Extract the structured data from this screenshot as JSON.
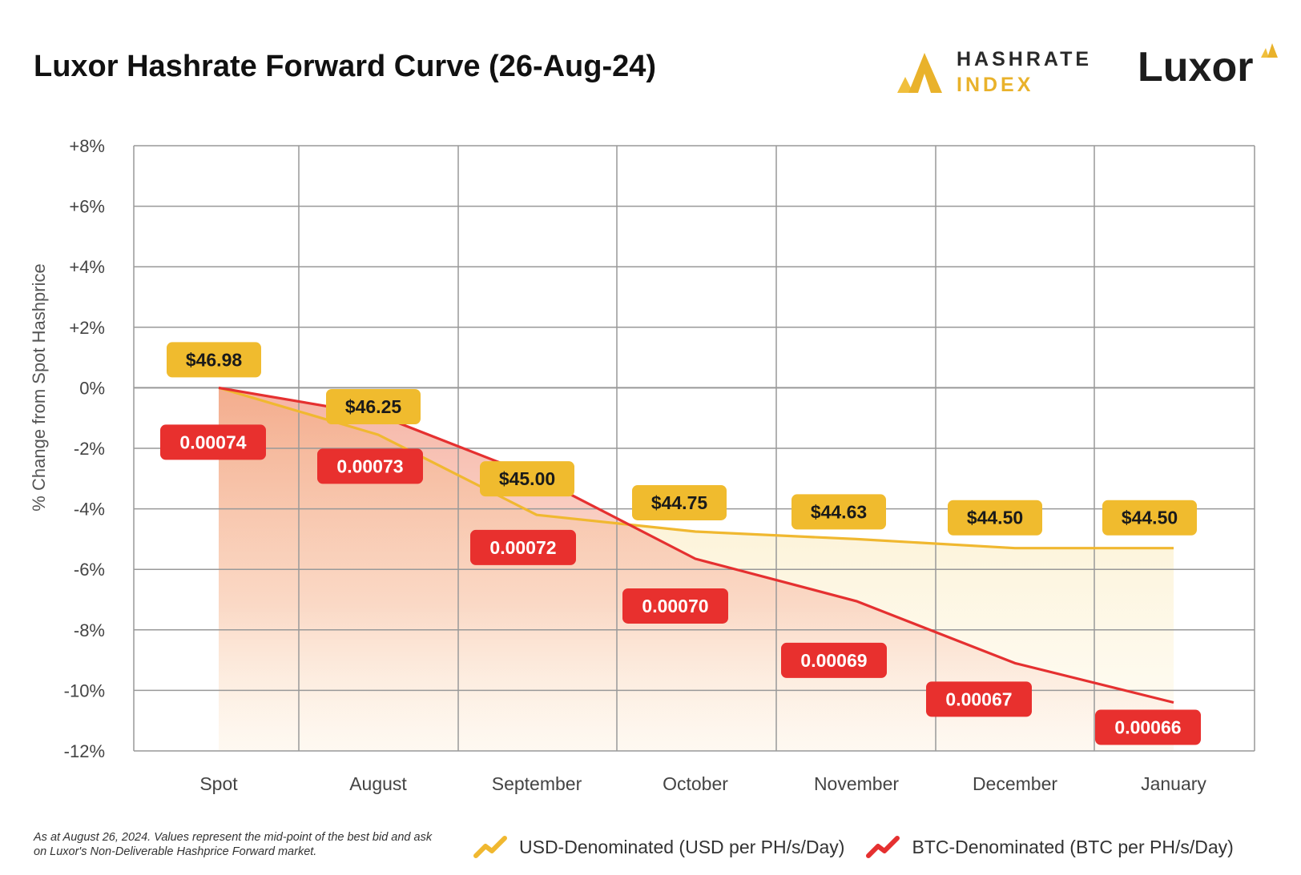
{
  "header": {
    "title": "Luxor Hashrate Forward Curve (26-Aug-24)",
    "hashrate_index_logo": {
      "line1": "HASHRATE",
      "line2": "INDEX"
    },
    "luxor_logo": "Luxor"
  },
  "colors": {
    "usd": "#f0bb2e",
    "usd_line": "#f0b830",
    "btc": "#e8302e",
    "btc_line": "#e53030",
    "grid": "#999999",
    "axis_text": "#444444"
  },
  "chart_data": {
    "type": "line",
    "categories": [
      "Spot",
      "August",
      "September",
      "October",
      "November",
      "December",
      "January"
    ],
    "ylabel": "% Change from Spot Hashprice",
    "ylim": [
      -12,
      8
    ],
    "yticks": [
      8,
      6,
      4,
      2,
      0,
      -2,
      -4,
      -6,
      -8,
      -10,
      -12
    ],
    "ytick_labels": [
      "+8%",
      "+6%",
      "+4%",
      "+2%",
      "0%",
      "-2%",
      "-4%",
      "-6%",
      "-8%",
      "-10%",
      "-12%"
    ],
    "grid": true,
    "legend_position": "bottom",
    "series": [
      {
        "name": "USD-Denominated (USD per PH/s/Day)",
        "values": [
          0,
          -1.55,
          -4.2,
          -4.75,
          -5.0,
          -5.3,
          -5.3
        ],
        "labels": [
          "$46.98",
          "$46.25",
          "$45.00",
          "$44.75",
          "$44.63",
          "$44.50",
          "$44.50"
        ]
      },
      {
        "name": "BTC-Denominated (BTC per PH/s/Day)",
        "values": [
          0,
          -0.9,
          -2.95,
          -5.65,
          -7.05,
          -9.1,
          -10.4
        ],
        "labels": [
          "0.00074",
          "0.00073",
          "0.00072",
          "0.00070",
          "0.00069",
          "0.00067",
          "0.00066"
        ]
      }
    ]
  },
  "footnote": "As at August 26, 2024. Values represent the mid-point of the best bid and ask on Luxor's Non-Deliverable Hashprice Forward market."
}
